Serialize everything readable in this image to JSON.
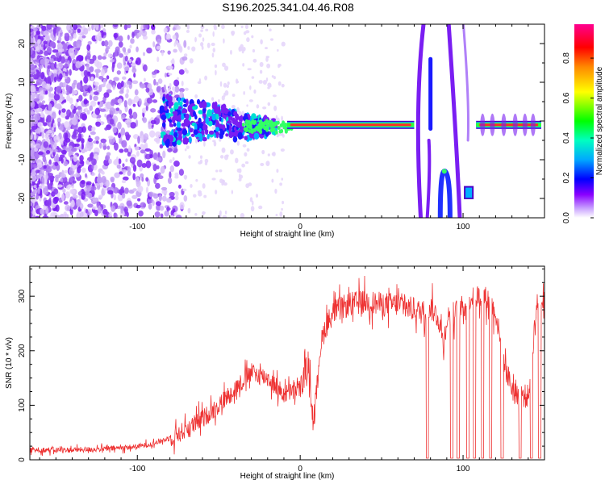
{
  "title": "S196.2025.341.04.46.R08",
  "chart_data": [
    {
      "type": "heatmap",
      "title": "",
      "xlabel": "Height of straight line (km)",
      "ylabel": "Frequency (Hz)",
      "xlim": [
        -166,
        150
      ],
      "ylim": [
        -25,
        25
      ],
      "xticks": [
        -100,
        0,
        100
      ],
      "yticks": [
        -20,
        -10,
        0,
        10,
        20
      ],
      "colorbar": {
        "label": "Normalized spectral amplitude",
        "range": [
          0,
          0.97
        ],
        "ticks": [
          "0.0",
          "0.2",
          "0.4",
          "0.6",
          "0.8"
        ],
        "colors": [
          "#ffffff",
          "#8a00ff",
          "#0000ff",
          "#00d8ff",
          "#00ff00",
          "#ffff00",
          "#ff8800",
          "#ff0000",
          "#ff00a0"
        ]
      },
      "features": [
        {
          "name": "scattered noise",
          "x_range": [
            -166,
            -80
          ],
          "freq_range": [
            -25,
            25
          ],
          "amplitude": 0.05
        },
        {
          "name": "converging signal",
          "x_range": [
            -80,
            -20
          ],
          "freq_range": [
            -5,
            5
          ],
          "amplitude": 0.25
        },
        {
          "name": "tone near 0 Hz",
          "x_range": [
            -20,
            70
          ],
          "freq": -1,
          "amplitude": 0.9
        },
        {
          "name": "tone near 0 Hz",
          "x_range": [
            108,
            148
          ],
          "freq": -1,
          "amplitude": 0.9
        }
      ]
    },
    {
      "type": "line",
      "title": "",
      "xlabel": "Height of straight line (km)",
      "ylabel": "SNR (10 * v/v)",
      "xlim": [
        -166,
        150
      ],
      "ylim": [
        0,
        355
      ],
      "xticks": [
        -100,
        0,
        100
      ],
      "yticks": [
        0,
        100,
        200,
        300
      ],
      "color": "#ee3333",
      "series": [
        {
          "name": "SNR",
          "x": [
            -166,
            -140,
            -120,
            -100,
            -90,
            -80,
            -70,
            -60,
            -50,
            -40,
            -30,
            -20,
            -10,
            0,
            5,
            8,
            10,
            12,
            15,
            20,
            30,
            40,
            50,
            60,
            70,
            75,
            80,
            85,
            88,
            90,
            95,
            100,
            105,
            110,
            115,
            120,
            125,
            130,
            135,
            140,
            145,
            150
          ],
          "values": [
            18,
            18,
            20,
            24,
            30,
            40,
            55,
            75,
            100,
            130,
            160,
            150,
            120,
            130,
            180,
            70,
            120,
            200,
            240,
            270,
            285,
            290,
            285,
            285,
            275,
            270,
            280,
            260,
            210,
            260,
            270,
            280,
            300,
            300,
            295,
            270,
            180,
            130,
            120,
            115,
            280,
            310
          ]
        }
      ],
      "dropouts": [
        78,
        93,
        97,
        103,
        107,
        112,
        117,
        124,
        135,
        142,
        147
      ]
    }
  ]
}
